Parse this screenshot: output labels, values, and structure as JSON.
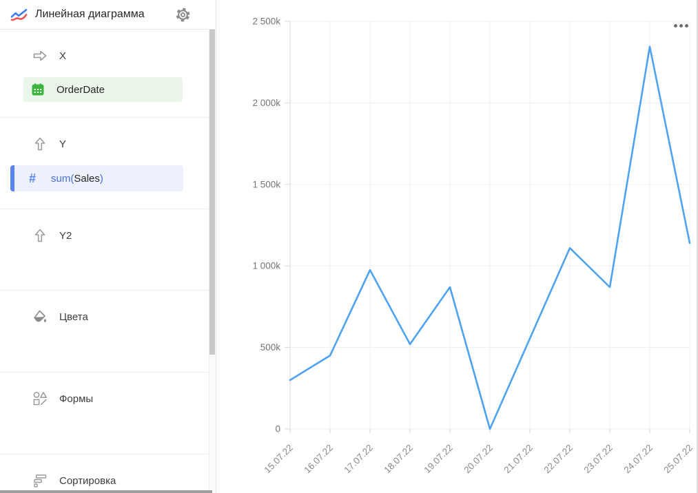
{
  "header": {
    "title": "Линейная диаграмма",
    "type_icon": "line-chart-icon",
    "settings_icon": "gear-icon"
  },
  "sidebar": {
    "sections": [
      {
        "id": "x",
        "label": "X",
        "icon": "arrow-right-icon"
      },
      {
        "id": "y",
        "label": "Y",
        "icon": "arrow-up-icon"
      },
      {
        "id": "y2",
        "label": "Y2",
        "icon": "arrow-up-icon"
      },
      {
        "id": "colors",
        "label": "Цвета",
        "icon": "paint-bucket-icon"
      },
      {
        "id": "shapes",
        "label": "Формы",
        "icon": "shapes-icon"
      },
      {
        "id": "sort",
        "label": "Сортировка",
        "icon": "sort-icon"
      }
    ],
    "x_field": {
      "name": "OrderDate",
      "icon": "calendar-icon",
      "field_type": "date"
    },
    "y_field": {
      "formula_prefix": "sum(",
      "name": "Sales",
      "formula_suffix": ")",
      "icon": "hash-icon",
      "field_type": "measure"
    }
  },
  "chart_menu": {
    "icon": "ellipsis-menu"
  },
  "chart_data": {
    "type": "line",
    "title": "",
    "x": [
      "15.07.22",
      "16.07.22",
      "17.07.22",
      "18.07.22",
      "19.07.22",
      "20.07.22",
      "21.07.22",
      "22.07.22",
      "23.07.22",
      "24.07.22",
      "25.07.22"
    ],
    "series": [
      {
        "name": "sum(Sales)",
        "values": [
          300000,
          450000,
          975000,
          520000,
          870000,
          0,
          555000,
          1110000,
          870000,
          2345000,
          1140000
        ],
        "color": "#4DA2F1"
      }
    ],
    "ylim": [
      0,
      2500000
    ],
    "y_ticks": [
      0,
      500000,
      1000000,
      1500000,
      2000000,
      2500000
    ],
    "y_tick_labels": [
      "0",
      "500k",
      "1 000k",
      "1 500k",
      "2 000k",
      "2 500k"
    ],
    "xlabel": "",
    "ylabel": "",
    "grid": true,
    "legend": false
  },
  "colors": {
    "line": "#4DA2F1",
    "grid": "#efefef",
    "axis": "#d9d9d9",
    "axis_label": "#757575",
    "x_label": "#8a8a8a",
    "green_chip_bg": "#eaf6ea",
    "green_icon": "#3bb53b",
    "blue_chip_bg": "#ecf1fc",
    "blue_accent": "#5c83f2",
    "formula_blue": "#4a6fd9",
    "text_dark": "#262626"
  }
}
